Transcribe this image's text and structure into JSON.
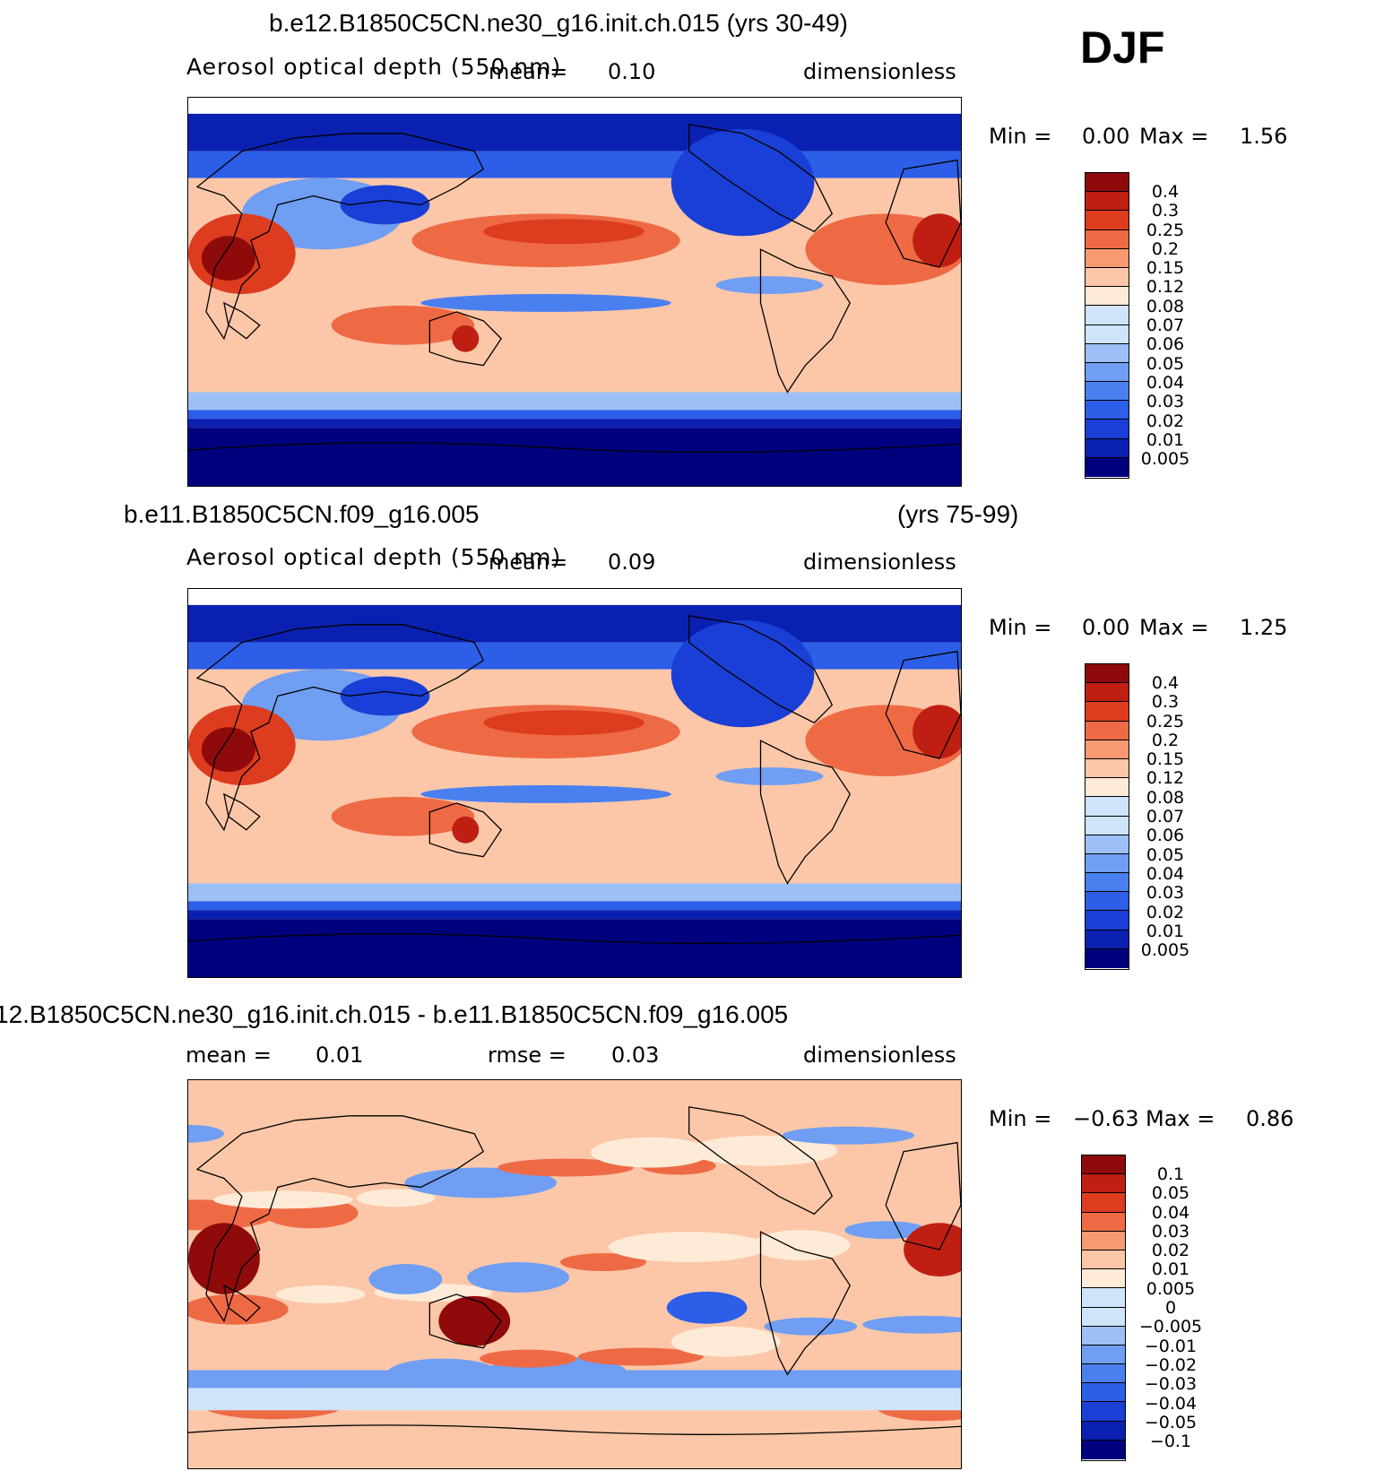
{
  "season": "DJF",
  "colors": {
    "ramp": [
      "#00007f",
      "#0a20b0",
      "#1a3fd6",
      "#2c5ee8",
      "#4a7ff0",
      "#6f9ef3",
      "#9cc0f6",
      "#cfe3fa",
      "#fdebd8",
      "#fcc7a8",
      "#f79a72",
      "#ee6a45",
      "#dd3c1f",
      "#bf1f12",
      "#8f0a0a"
    ]
  },
  "panels": [
    {
      "title": "b.e12.B1850C5CN.ne30_g16.init.ch.015 (yrs 30-49)",
      "field": "Aerosol optical depth (550 nm)",
      "mean_label": "mean=",
      "mean_value": "0.10",
      "units": "dimensionless",
      "min_label": "Min =",
      "min_value": "0.00",
      "max_label": "Max =",
      "max_value": "1.56",
      "levels": [
        "0.4",
        "0.3",
        "0.25",
        "0.2",
        "0.15",
        "0.12",
        "0.08",
        "0.07",
        "0.06",
        "0.05",
        "0.04",
        "0.03",
        "0.02",
        "0.01",
        "0.005"
      ]
    },
    {
      "title_left": "b.e11.B1850C5CN.f09_g16.005",
      "title_right": "(yrs 75-99)",
      "field": "Aerosol optical depth (550 nm)",
      "mean_label": "mean=",
      "mean_value": "0.09",
      "units": "dimensionless",
      "min_label": "Min =",
      "min_value": "0.00",
      "max_label": "Max =",
      "max_value": "1.25",
      "levels": [
        "0.4",
        "0.3",
        "0.25",
        "0.2",
        "0.15",
        "0.12",
        "0.08",
        "0.07",
        "0.06",
        "0.05",
        "0.04",
        "0.03",
        "0.02",
        "0.01",
        "0.005"
      ]
    },
    {
      "title": "12.B1850C5CN.ne30_g16.init.ch.015 - b.e11.B1850C5CN.f09_g16.005",
      "mean_label": "mean =",
      "mean_value": "0.01",
      "rmse_label": "rmse =",
      "rmse_value": "0.03",
      "units": "dimensionless",
      "min_label": "Min =",
      "min_value": "−0.63",
      "max_label": "Max =",
      "max_value": "0.86",
      "levels": [
        "0.1",
        "0.05",
        "0.04",
        "0.03",
        "0.02",
        "0.01",
        "0.005",
        "0",
        "−0.005",
        "−0.01",
        "−0.02",
        "−0.03",
        "−0.04",
        "−0.05",
        "−0.1"
      ]
    }
  ]
}
